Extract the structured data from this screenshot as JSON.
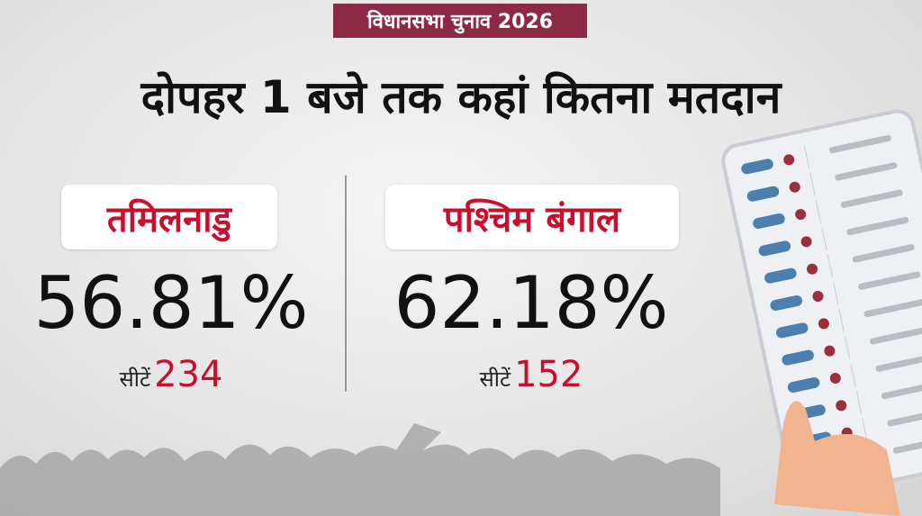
{
  "header": {
    "badge": "विधानसभा चुनाव 2026",
    "title": "दोपहर 1 बजे तक कहां कितना मतदान"
  },
  "states": [
    {
      "name": "तमिलनाडु",
      "turnout": "56.81%",
      "seats_label": "सीटें",
      "seats": "234"
    },
    {
      "name": "पश्चिम बंगाल",
      "turnout": "62.18%",
      "seats_label": "सीटें",
      "seats": "152"
    }
  ]
}
